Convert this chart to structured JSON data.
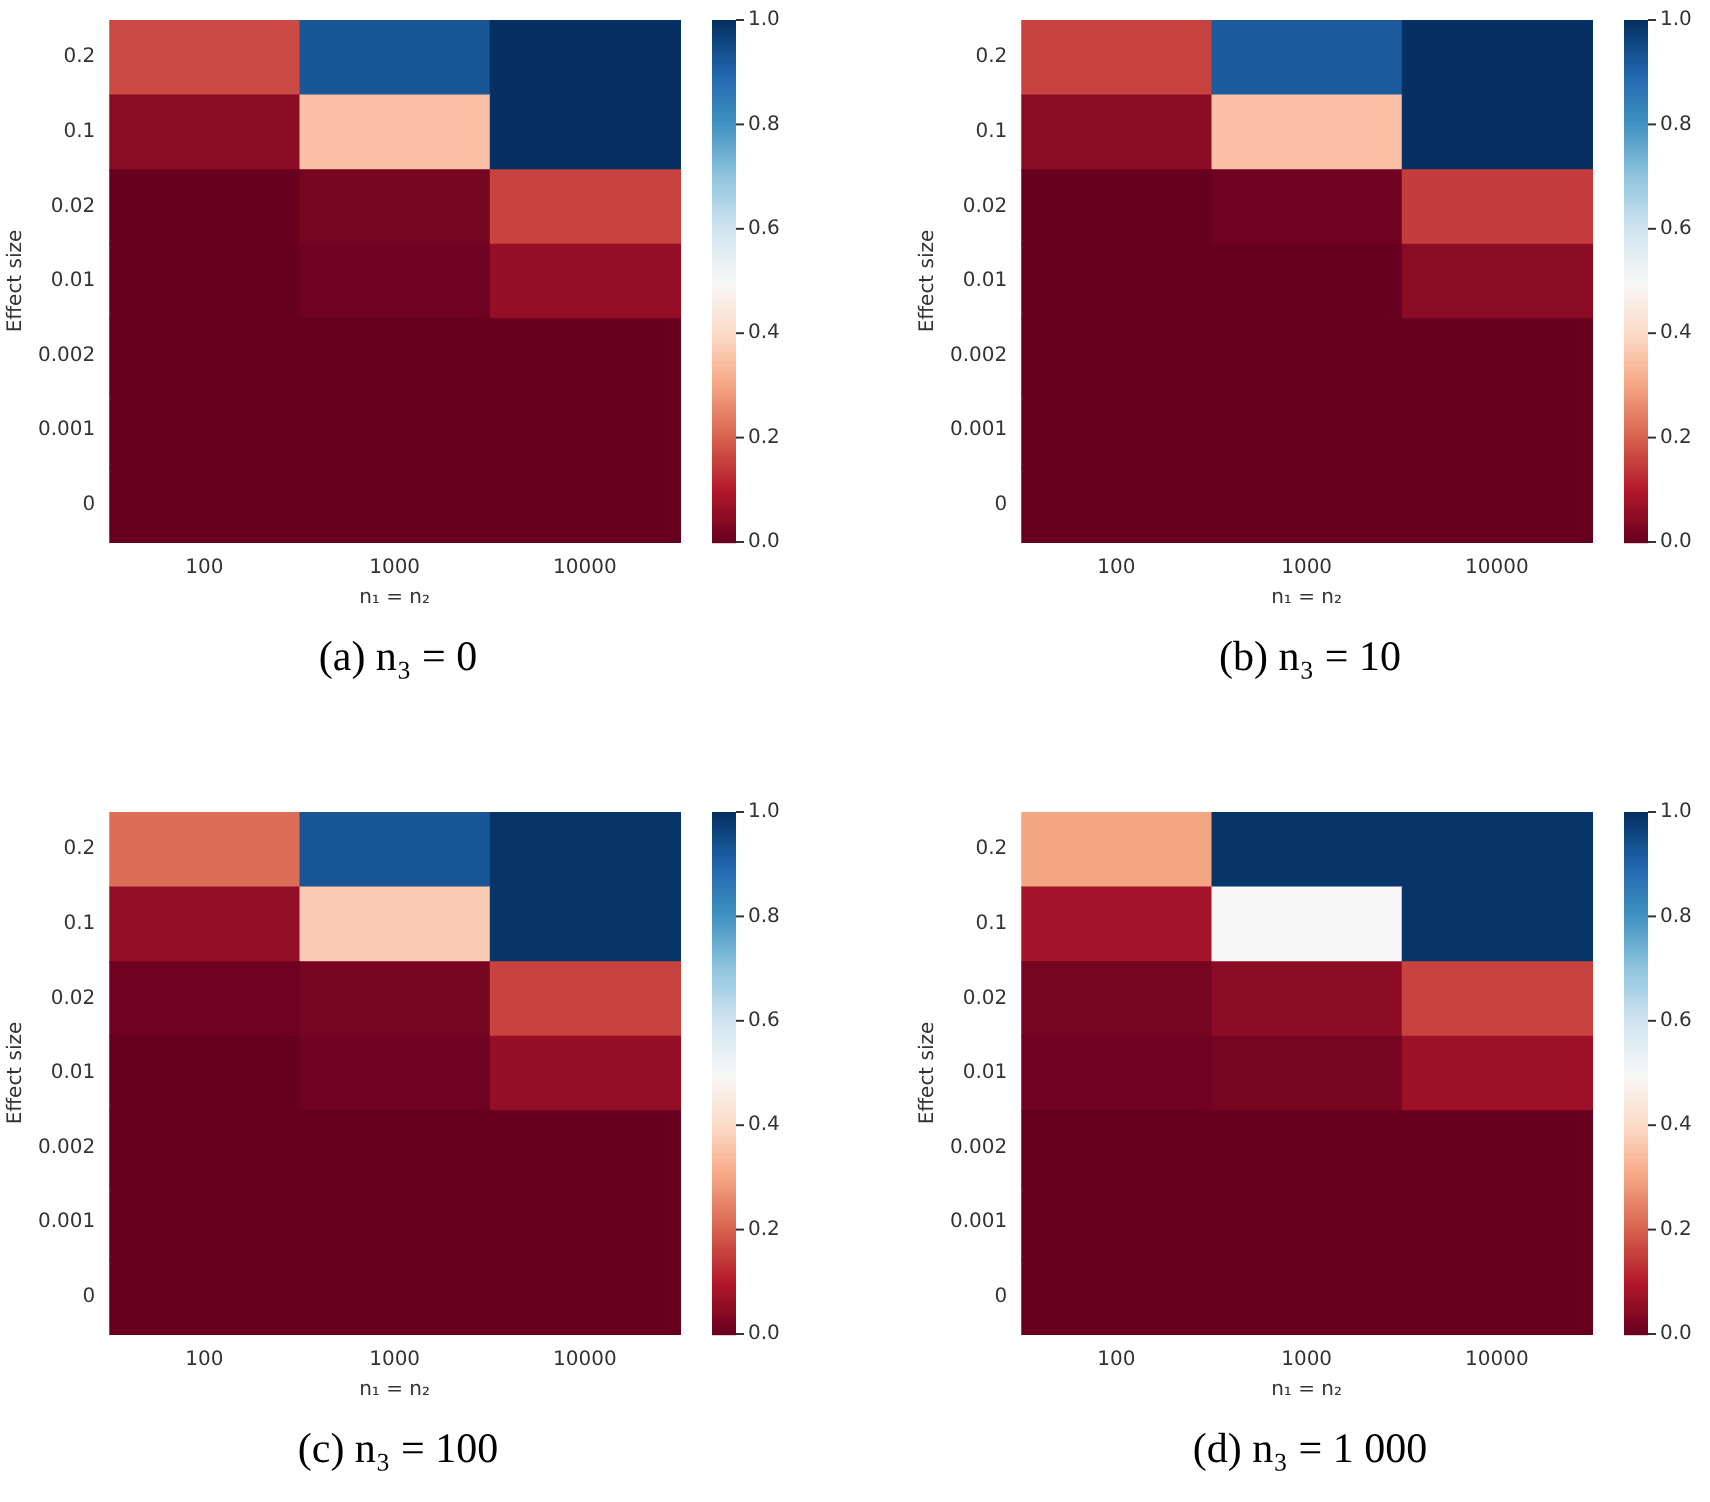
{
  "chart_data": [
    {
      "type": "heatmap",
      "xlabel": "n₁ = n₂",
      "ylabel": "Effect size",
      "annotations": [
        "(a) n₃ = 0"
      ],
      "categories": [
        "100",
        "1000",
        "10000"
      ],
      "y_categories": [
        "0.2",
        "0.1",
        "0.02",
        "0.01",
        "0.002",
        "0.001",
        "0"
      ],
      "cells": [
        [
          0.17,
          0.93,
          1.0
        ],
        [
          0.05,
          0.35,
          1.0
        ],
        [
          0.0,
          0.02,
          0.16
        ],
        [
          0.0,
          0.01,
          0.06
        ],
        [
          0,
          0,
          0
        ],
        [
          0,
          0,
          0
        ],
        [
          0,
          0,
          0
        ]
      ],
      "clim": [
        0,
        1
      ],
      "cticks": [
        {
          "value": 0,
          "label": "0.0"
        },
        {
          "value": 0.2,
          "label": "0.2"
        },
        {
          "value": 0.4,
          "label": "0.4"
        },
        {
          "value": 0.6,
          "label": "0.6"
        },
        {
          "value": 0.8,
          "label": "0.8"
        },
        {
          "value": 1,
          "label": "1.0"
        }
      ]
    },
    {
      "type": "heatmap",
      "xlabel": "n₁ = n₂",
      "ylabel": "Effect size",
      "annotations": [
        "(b) n₃ = 10"
      ],
      "categories": [
        "100",
        "1000",
        "10000"
      ],
      "y_categories": [
        "0.2",
        "0.1",
        "0.02",
        "0.01",
        "0.002",
        "0.001",
        "0"
      ],
      "cells": [
        [
          0.16,
          0.92,
          1.0
        ],
        [
          0.05,
          0.35,
          1.0
        ],
        [
          0.0,
          0.01,
          0.15
        ],
        [
          0.0,
          0.0,
          0.05
        ],
        [
          0,
          0,
          0
        ],
        [
          0,
          0,
          0
        ],
        [
          0,
          0,
          0
        ]
      ],
      "clim": [
        0,
        1
      ],
      "cticks": [
        {
          "value": 0,
          "label": "0.0"
        },
        {
          "value": 0.2,
          "label": "0.2"
        },
        {
          "value": 0.4,
          "label": "0.4"
        },
        {
          "value": 0.6,
          "label": "0.6"
        },
        {
          "value": 0.8,
          "label": "0.8"
        },
        {
          "value": 1,
          "label": "1.0"
        }
      ]
    },
    {
      "type": "heatmap",
      "xlabel": "n₁ = n₂",
      "ylabel": "Effect size",
      "annotations": [
        "(c) n₃ = 100"
      ],
      "categories": [
        "100",
        "1000",
        "10000"
      ],
      "y_categories": [
        "0.2",
        "0.1",
        "0.02",
        "0.01",
        "0.002",
        "0.001",
        "0"
      ],
      "cells": [
        [
          0.22,
          0.93,
          0.99
        ],
        [
          0.06,
          0.37,
          0.99
        ],
        [
          0.01,
          0.02,
          0.16
        ],
        [
          0.0,
          0.01,
          0.06
        ],
        [
          0,
          0,
          0
        ],
        [
          0,
          0,
          0
        ],
        [
          0,
          0,
          0
        ]
      ],
      "clim": [
        0,
        1
      ],
      "cticks": [
        {
          "value": 0,
          "label": "0.0"
        },
        {
          "value": 0.2,
          "label": "0.2"
        },
        {
          "value": 0.4,
          "label": "0.4"
        },
        {
          "value": 0.6,
          "label": "0.6"
        },
        {
          "value": 0.8,
          "label": "0.8"
        },
        {
          "value": 1,
          "label": "1.0"
        }
      ]
    },
    {
      "type": "heatmap",
      "xlabel": "n₁ = n₂",
      "ylabel": "Effect size",
      "annotations": [
        "(d) n₃ = 1 000"
      ],
      "categories": [
        "100",
        "1000",
        "10000"
      ],
      "y_categories": [
        "0.2",
        "0.1",
        "0.02",
        "0.01",
        "0.002",
        "0.001",
        "0"
      ],
      "cells": [
        [
          0.3,
          0.99,
          0.99
        ],
        [
          0.08,
          0.5,
          0.99
        ],
        [
          0.02,
          0.05,
          0.16
        ],
        [
          0.01,
          0.02,
          0.07
        ],
        [
          0,
          0,
          0
        ],
        [
          0,
          0,
          0
        ],
        [
          0,
          0,
          0
        ]
      ],
      "clim": [
        0,
        1
      ],
      "cticks": [
        {
          "value": 0,
          "label": "0.0"
        },
        {
          "value": 0.2,
          "label": "0.2"
        },
        {
          "value": 0.4,
          "label": "0.4"
        },
        {
          "value": 0.6,
          "label": "0.6"
        },
        {
          "value": 0.8,
          "label": "0.8"
        },
        {
          "value": 1,
          "label": "1.0"
        }
      ]
    }
  ]
}
